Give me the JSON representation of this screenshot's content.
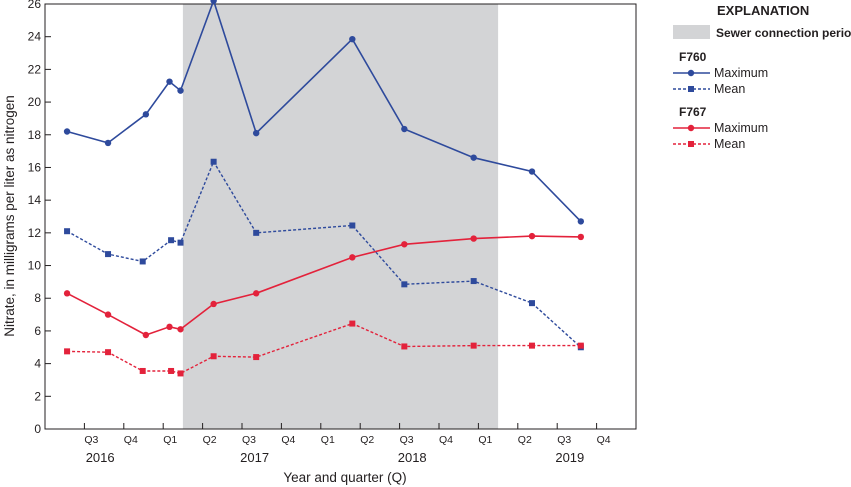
{
  "chart_data": {
    "type": "line",
    "xlabel": "Year and quarter (Q)",
    "ylabel": "Nitrate, in milligrams per liter as nitrogen",
    "ylim": [
      0,
      26
    ],
    "yticks": [
      0,
      2,
      4,
      6,
      8,
      10,
      12,
      14,
      16,
      18,
      20,
      22,
      24,
      26
    ],
    "xlim": [
      2016.25,
      2020.0
    ],
    "quarter_ticks": [
      {
        "x": 2016.5,
        "label": "Q3"
      },
      {
        "x": 2016.75,
        "label": "Q4"
      },
      {
        "x": 2017.0,
        "label": "Q1"
      },
      {
        "x": 2017.25,
        "label": "Q2"
      },
      {
        "x": 2017.5,
        "label": "Q3"
      },
      {
        "x": 2017.75,
        "label": "Q4"
      },
      {
        "x": 2018.0,
        "label": "Q1"
      },
      {
        "x": 2018.25,
        "label": "Q2"
      },
      {
        "x": 2018.5,
        "label": "Q3"
      },
      {
        "x": 2018.75,
        "label": "Q4"
      },
      {
        "x": 2019.0,
        "label": "Q1"
      },
      {
        "x": 2019.25,
        "label": "Q2"
      },
      {
        "x": 2019.5,
        "label": "Q3"
      },
      {
        "x": 2019.75,
        "label": "Q4"
      }
    ],
    "year_labels": [
      {
        "x": 2016.6,
        "label": "2016"
      },
      {
        "x": 2017.58,
        "label": "2017"
      },
      {
        "x": 2018.58,
        "label": "2018"
      },
      {
        "x": 2019.58,
        "label": "2019"
      }
    ],
    "shaded_period": {
      "label": "Sewer connection period",
      "start": 2017.125,
      "end": 2019.125,
      "color": "#d3d4d6"
    },
    "series": [
      {
        "group": "F760",
        "name": "Maximum",
        "color": "#2e4a9c",
        "line": "solid",
        "marker": "circle",
        "points": [
          [
            2016.39,
            18.2
          ],
          [
            2016.65,
            17.5
          ],
          [
            2016.89,
            19.25
          ],
          [
            2017.04,
            21.25
          ],
          [
            2017.11,
            20.7
          ],
          [
            2017.32,
            26.2
          ],
          [
            2017.59,
            18.1
          ],
          [
            2018.2,
            23.85
          ],
          [
            2018.53,
            18.35
          ],
          [
            2018.97,
            16.6
          ],
          [
            2019.34,
            15.75
          ],
          [
            2019.65,
            12.7
          ]
        ]
      },
      {
        "group": "F760",
        "name": "Mean",
        "color": "#2e4a9c",
        "line": "dashed",
        "marker": "square",
        "points": [
          [
            2016.39,
            12.1
          ],
          [
            2016.65,
            10.7
          ],
          [
            2016.87,
            10.25
          ],
          [
            2017.05,
            11.55
          ],
          [
            2017.11,
            11.4
          ],
          [
            2017.32,
            16.35
          ],
          [
            2017.59,
            12.0
          ],
          [
            2018.2,
            12.45
          ],
          [
            2018.53,
            8.85
          ],
          [
            2018.97,
            9.05
          ],
          [
            2019.34,
            7.7
          ],
          [
            2019.65,
            5.0
          ]
        ]
      },
      {
        "group": "F767",
        "name": "Maximum",
        "color": "#e3223b",
        "line": "solid",
        "marker": "circle",
        "points": [
          [
            2016.39,
            8.3
          ],
          [
            2016.65,
            7.0
          ],
          [
            2016.89,
            5.75
          ],
          [
            2017.04,
            6.25
          ],
          [
            2017.11,
            6.1
          ],
          [
            2017.32,
            7.65
          ],
          [
            2017.59,
            8.3
          ],
          [
            2018.2,
            10.5
          ],
          [
            2018.53,
            11.3
          ],
          [
            2018.97,
            11.65
          ],
          [
            2019.34,
            11.8
          ],
          [
            2019.65,
            11.75
          ]
        ]
      },
      {
        "group": "F767",
        "name": "Mean",
        "color": "#e3223b",
        "line": "dashed",
        "marker": "square",
        "points": [
          [
            2016.39,
            4.75
          ],
          [
            2016.65,
            4.7
          ],
          [
            2016.87,
            3.55
          ],
          [
            2017.05,
            3.55
          ],
          [
            2017.11,
            3.4
          ],
          [
            2017.32,
            4.45
          ],
          [
            2017.59,
            4.4
          ],
          [
            2018.2,
            6.45
          ],
          [
            2018.53,
            5.05
          ],
          [
            2018.97,
            5.1
          ],
          [
            2019.34,
            5.1
          ],
          [
            2019.65,
            5.1
          ]
        ]
      }
    ]
  },
  "legend": {
    "title": "EXPLANATION",
    "shaded_label": "Sewer connection period",
    "groups": [
      {
        "name": "F760",
        "items": [
          {
            "label": "Maximum"
          },
          {
            "label": "Mean"
          }
        ]
      },
      {
        "name": "F767",
        "items": [
          {
            "label": "Maximum"
          },
          {
            "label": "Mean"
          }
        ]
      }
    ]
  }
}
